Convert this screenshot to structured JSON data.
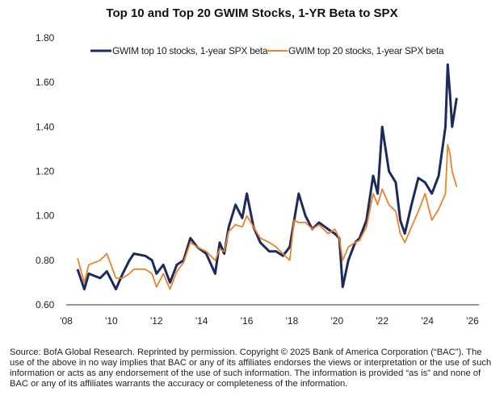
{
  "chart_data": {
    "type": "line",
    "title": "Top 10 and Top 20 GWIM Stocks, 1-YR Beta to SPX",
    "xlabel": "",
    "ylabel": "",
    "xlim": [
      2008,
      2026
    ],
    "ylim": [
      0.6,
      1.8
    ],
    "x_ticks": [
      "'08",
      "'10",
      "'12",
      "'14",
      "'16",
      "'18",
      "'20",
      "'22",
      "'24",
      "'26"
    ],
    "y_ticks": [
      "0.60",
      "0.80",
      "1.00",
      "1.20",
      "1.40",
      "1.60",
      "1.80"
    ],
    "grid": false,
    "legend_placement": "top",
    "series": [
      {
        "name": "GWIM top 10 stocks, 1-year SPX beta",
        "color": "#1c2a5c",
        "x": [
          2008.5,
          2008.8,
          2009.0,
          2009.5,
          2009.8,
          2010.2,
          2010.5,
          2010.8,
          2011.0,
          2011.5,
          2011.8,
          2012.0,
          2012.3,
          2012.6,
          2012.9,
          2013.2,
          2013.5,
          2013.8,
          2014.2,
          2014.6,
          2014.8,
          2015.0,
          2015.2,
          2015.5,
          2015.8,
          2016.0,
          2016.3,
          2016.6,
          2017.0,
          2017.3,
          2017.6,
          2017.9,
          2018.1,
          2018.3,
          2018.6,
          2018.9,
          2019.2,
          2019.6,
          2019.9,
          2020.1,
          2020.25,
          2020.5,
          2020.8,
          2021.0,
          2021.3,
          2021.6,
          2021.8,
          2022.0,
          2022.3,
          2022.6,
          2022.8,
          2023.0,
          2023.3,
          2023.6,
          2023.9,
          2024.2,
          2024.5,
          2024.8,
          2024.9,
          2025.0,
          2025.1,
          2025.3
        ],
        "y": [
          0.76,
          0.67,
          0.74,
          0.72,
          0.75,
          0.67,
          0.74,
          0.8,
          0.83,
          0.82,
          0.8,
          0.74,
          0.78,
          0.7,
          0.78,
          0.8,
          0.9,
          0.86,
          0.83,
          0.74,
          0.88,
          0.83,
          0.95,
          1.05,
          0.99,
          1.1,
          0.95,
          0.88,
          0.84,
          0.84,
          0.82,
          0.86,
          0.98,
          1.1,
          1.0,
          0.94,
          0.97,
          0.94,
          0.92,
          0.9,
          0.68,
          0.8,
          0.88,
          0.9,
          0.98,
          1.18,
          1.1,
          1.4,
          1.2,
          1.15,
          0.98,
          0.92,
          1.05,
          1.17,
          1.15,
          1.1,
          1.18,
          1.4,
          1.68,
          1.55,
          1.4,
          1.53
        ]
      },
      {
        "name": "GWIM top 20 stocks, 1-year SPX beta",
        "color": "#e8832e",
        "x": [
          2008.5,
          2008.8,
          2009.0,
          2009.5,
          2009.8,
          2010.2,
          2010.5,
          2010.8,
          2011.0,
          2011.5,
          2011.8,
          2012.0,
          2012.3,
          2012.6,
          2012.9,
          2013.2,
          2013.5,
          2013.8,
          2014.2,
          2014.6,
          2014.8,
          2015.0,
          2015.2,
          2015.5,
          2015.8,
          2016.0,
          2016.3,
          2016.6,
          2017.0,
          2017.3,
          2017.6,
          2017.9,
          2018.1,
          2018.3,
          2018.6,
          2018.9,
          2019.2,
          2019.6,
          2019.9,
          2020.1,
          2020.25,
          2020.5,
          2020.8,
          2021.0,
          2021.3,
          2021.6,
          2021.8,
          2022.0,
          2022.3,
          2022.6,
          2022.8,
          2023.0,
          2023.3,
          2023.6,
          2023.9,
          2024.2,
          2024.5,
          2024.8,
          2024.9,
          2025.0,
          2025.1,
          2025.3
        ],
        "y": [
          0.81,
          0.7,
          0.78,
          0.8,
          0.83,
          0.72,
          0.72,
          0.74,
          0.76,
          0.76,
          0.74,
          0.68,
          0.74,
          0.67,
          0.75,
          0.79,
          0.88,
          0.86,
          0.84,
          0.8,
          0.85,
          0.84,
          0.93,
          0.96,
          0.95,
          1.0,
          0.95,
          0.9,
          0.88,
          0.86,
          0.83,
          0.8,
          0.98,
          0.97,
          0.97,
          0.94,
          0.96,
          0.92,
          0.94,
          0.9,
          0.8,
          0.86,
          0.88,
          0.89,
          0.95,
          1.1,
          1.05,
          1.12,
          1.05,
          1.02,
          0.92,
          0.88,
          0.95,
          1.02,
          1.1,
          0.98,
          1.03,
          1.1,
          1.32,
          1.28,
          1.2,
          1.13
        ]
      }
    ]
  },
  "source_text": "Source: BofA Global Research. Reprinted by permission. Copyright © 2025 Bank of America Corporation (“BAC”). The use of the above in no way implies that BAC or any of its affiliates endorses the views or interpretation or the use of such information or acts as any endorsement of the use of such information. The information is provided “as is” and none of BAC or any of its affiliates warrants the accuracy or completeness of the information."
}
